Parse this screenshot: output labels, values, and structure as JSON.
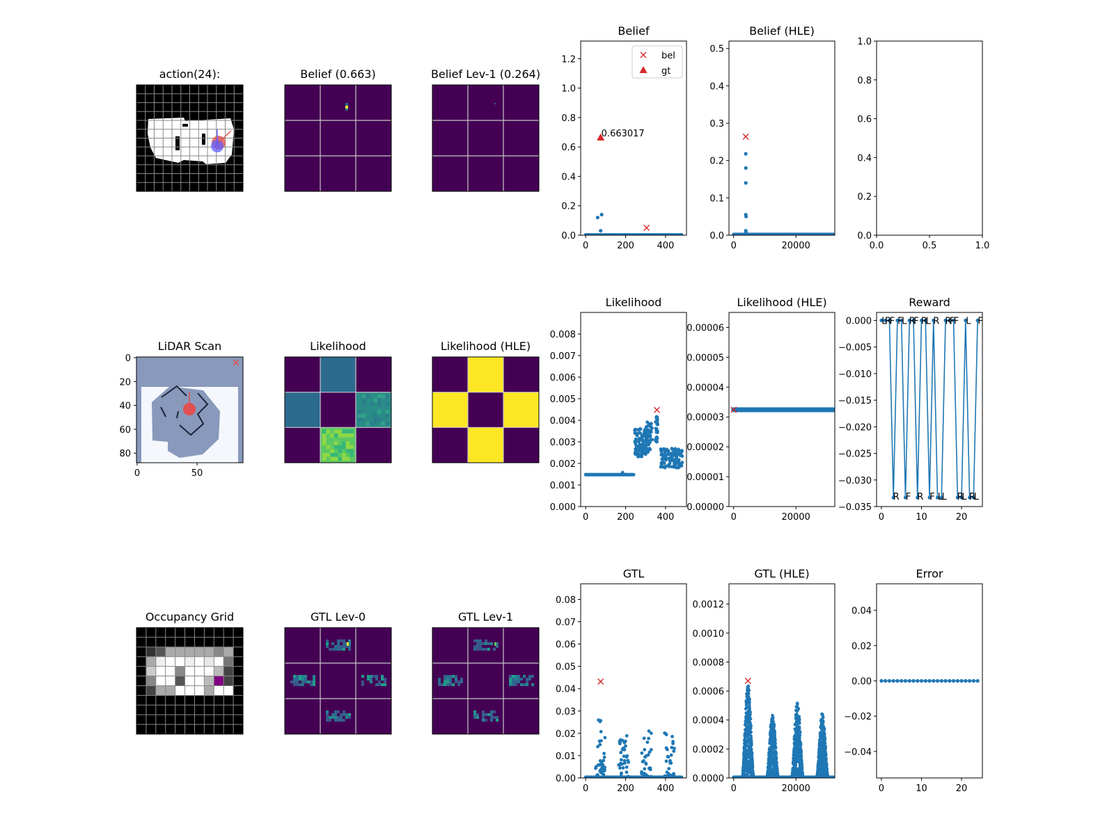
{
  "colors": {
    "scatter": "#1f77b4",
    "marker": "#d62728",
    "viridis_low": "#440154",
    "viridis_mid": "#2c6a8e",
    "viridis_teal": "#22a884",
    "viridis_high": "#fde725",
    "grid_line": "#c8c8c8",
    "lidar_bg": "#8899bb"
  },
  "image_panels": [
    {
      "id": "action",
      "title": "action(24):",
      "kind": "map"
    },
    {
      "id": "belief-map",
      "title": "Belief (0.663)",
      "kind": "belief"
    },
    {
      "id": "belief-lev1",
      "title": "Belief Lev-1 (0.264)",
      "kind": "belief-lev1"
    },
    {
      "id": "lidar",
      "title": "LiDAR Scan",
      "kind": "lidar",
      "xticks": [
        "0",
        "50"
      ],
      "yticks": [
        "0",
        "20",
        "40",
        "60",
        "80"
      ]
    },
    {
      "id": "likelihood-map",
      "title": "Likelihood",
      "kind": "likelihood"
    },
    {
      "id": "likelihood-hle-map",
      "title": "Likelihood (HLE)",
      "kind": "likelihood-hle"
    },
    {
      "id": "occupancy",
      "title": "Occupancy Grid",
      "kind": "occupancy"
    },
    {
      "id": "gtl-lev0",
      "title": "GTL Lev-0",
      "kind": "gtl0"
    },
    {
      "id": "gtl-lev1",
      "title": "GTL Lev-1",
      "kind": "gtl1"
    }
  ],
  "chart_data": [
    {
      "id": "belief",
      "type": "scatter",
      "title": "Belief",
      "xlim": [
        -25,
        505
      ],
      "ylim": [
        0,
        1.32
      ],
      "xticks": [
        0,
        200,
        400
      ],
      "yticks": [
        0.0,
        0.2,
        0.4,
        0.6,
        0.8,
        1.0,
        1.2
      ],
      "ytick_decimals": 1,
      "points": [
        [
          60,
          0.12
        ],
        [
          80,
          0.14
        ],
        [
          75,
          0.03
        ],
        [
          10,
          0.002
        ],
        [
          100,
          0.002
        ],
        [
          200,
          0.002
        ],
        [
          300,
          0.002
        ],
        [
          400,
          0.002
        ],
        [
          480,
          0.002
        ]
      ],
      "baseline": {
        "from": 0,
        "to": 480,
        "y": 0.002
      },
      "markers": [
        {
          "shape": "x",
          "x": 305,
          "y": 0.05
        },
        {
          "shape": "triangle",
          "x": 75,
          "y": 0.663
        }
      ],
      "annotations": [
        {
          "text": "0.663017",
          "x": 75,
          "y": 0.663
        }
      ],
      "legend": {
        "position": "top-right",
        "entries": [
          {
            "shape": "x",
            "label": "bel"
          },
          {
            "shape": "triangle",
            "label": "gt"
          }
        ]
      }
    },
    {
      "id": "belief-hle",
      "type": "scatter",
      "title": "Belief (HLE)",
      "xlim": [
        -1500,
        32500
      ],
      "ylim": [
        0,
        0.52
      ],
      "xticks": [
        0,
        20000
      ],
      "yticks": [
        0.0,
        0.1,
        0.2,
        0.3,
        0.4,
        0.5
      ],
      "ytick_decimals": 1,
      "points": [
        [
          3900,
          0.218
        ],
        [
          3900,
          0.18
        ],
        [
          3900,
          0.14
        ],
        [
          3900,
          0.055
        ],
        [
          4000,
          0.05
        ],
        [
          3900,
          0.012
        ],
        [
          3950,
          0.008
        ]
      ],
      "baseline": {
        "from": 0,
        "to": 32000,
        "y": 0.002
      },
      "markers": [
        {
          "shape": "x",
          "x": 3900,
          "y": 0.264
        }
      ],
      "annotations": [],
      "legend": null
    },
    {
      "id": "empty",
      "type": "scatter",
      "title": "",
      "xlim": [
        0,
        1
      ],
      "ylim": [
        0,
        1
      ],
      "xticks": [
        0.0,
        0.5,
        1.0
      ],
      "yticks": [
        0.0,
        0.2,
        0.4,
        0.6,
        0.8,
        1.0
      ],
      "ytick_decimals": 1,
      "xtick_decimals": 1,
      "points": [],
      "baseline": null,
      "markers": [],
      "annotations": [],
      "legend": null
    },
    {
      "id": "likelihood",
      "type": "scatter",
      "title": "Likelihood",
      "xlim": [
        -25,
        505
      ],
      "ylim": [
        0,
        0.009
      ],
      "xticks": [
        0,
        200,
        400
      ],
      "yticks": [
        0.0,
        0.001,
        0.002,
        0.003,
        0.004,
        0.005,
        0.006,
        0.007,
        0.008
      ],
      "ytick_decimals": 3,
      "generated": "likelihood",
      "baseline": {
        "from": 0,
        "to": 240,
        "y": 0.00148
      },
      "markers": [
        {
          "shape": "x",
          "x": 357,
          "y": 0.00448
        }
      ],
      "annotations": [],
      "legend": null
    },
    {
      "id": "likelihood-hle",
      "type": "scatter",
      "title": "Likelihood (HLE)",
      "xlim": [
        -1500,
        32500
      ],
      "ylim": [
        0,
        6.5e-05
      ],
      "xticks": [
        0,
        20000
      ],
      "yticks": [
        0.0,
        1e-05,
        2e-05,
        3e-05,
        4e-05,
        5e-05,
        6e-05
      ],
      "ytick_decimals": 5,
      "points": [],
      "baseline": {
        "from": 0,
        "to": 32000,
        "y": 3.24e-05,
        "thick": true
      },
      "markers": [
        {
          "shape": "x",
          "x": 0,
          "y": 3.24e-05
        }
      ],
      "annotations": [],
      "legend": null
    },
    {
      "id": "reward",
      "type": "line",
      "title": "Reward",
      "xlim": [
        -1.2,
        25.2
      ],
      "ylim": [
        -0.035,
        0.0015
      ],
      "xticks": [
        0,
        10,
        20
      ],
      "yticks": [
        0.0,
        -0.005,
        -0.01,
        -0.015,
        -0.02,
        -0.025,
        -0.03,
        -0.035
      ],
      "ytick_decimals": 3,
      "points": [
        [
          0,
          0
        ],
        [
          1,
          0
        ],
        [
          2,
          0
        ],
        [
          3,
          -0.0333
        ],
        [
          4,
          0
        ],
        [
          5,
          0
        ],
        [
          6,
          -0.0333
        ],
        [
          7,
          0
        ],
        [
          8,
          0
        ],
        [
          9,
          -0.0333
        ],
        [
          10,
          0
        ],
        [
          11,
          0
        ],
        [
          12,
          -0.0333
        ],
        [
          13,
          0
        ],
        [
          14,
          -0.0333
        ],
        [
          15,
          -0.0333
        ],
        [
          16,
          0
        ],
        [
          17,
          0
        ],
        [
          18,
          0
        ],
        [
          19,
          -0.0333
        ],
        [
          20,
          -0.0333
        ],
        [
          21,
          0
        ],
        [
          22,
          -0.0333
        ],
        [
          23,
          -0.0333
        ],
        [
          24,
          0
        ]
      ],
      "labels": [
        "L",
        "R",
        "F",
        "R",
        "F",
        "L",
        "F",
        "R",
        "F",
        "R",
        "R",
        "L",
        "F",
        "R",
        "L",
        "L",
        "R",
        "F",
        "F",
        "R",
        "L",
        "L",
        "R",
        "L",
        "F"
      ],
      "legend": null
    },
    {
      "id": "gtl",
      "type": "scatter",
      "title": "GTL",
      "xlim": [
        -25,
        505
      ],
      "ylim": [
        0,
        0.087
      ],
      "xticks": [
        0,
        200,
        400
      ],
      "yticks": [
        0.0,
        0.01,
        0.02,
        0.03,
        0.04,
        0.05,
        0.06,
        0.07,
        0.08
      ],
      "ytick_decimals": 2,
      "generated": "gtl",
      "baseline": {
        "from": 0,
        "to": 480,
        "y": 0.0003
      },
      "markers": [
        {
          "shape": "x",
          "x": 75,
          "y": 0.0432
        }
      ],
      "annotations": [],
      "legend": null
    },
    {
      "id": "gtl-hle",
      "type": "scatter",
      "title": "GTL (HLE)",
      "xlim": [
        -1500,
        32500
      ],
      "ylim": [
        0,
        0.00134
      ],
      "xticks": [
        0,
        20000
      ],
      "yticks": [
        0.0,
        0.0002,
        0.0004,
        0.0006,
        0.0008,
        0.001,
        0.0012
      ],
      "ytick_decimals": 4,
      "generated": "gtl-hle",
      "baseline": {
        "from": 0,
        "to": 32000,
        "y": 5e-06
      },
      "markers": [
        {
          "shape": "x",
          "x": 4600,
          "y": 0.00067
        }
      ],
      "annotations": [],
      "legend": null
    },
    {
      "id": "error",
      "type": "line",
      "title": "Error",
      "xlim": [
        -1.2,
        25.2
      ],
      "ylim": [
        -0.055,
        0.055
      ],
      "xticks": [
        0,
        10,
        20
      ],
      "yticks": [
        -0.04,
        -0.02,
        0.0,
        0.02,
        0.04
      ],
      "ytick_decimals": 2,
      "points": [
        [
          0,
          0
        ],
        [
          1,
          0
        ],
        [
          2,
          0
        ],
        [
          3,
          0
        ],
        [
          4,
          0
        ],
        [
          5,
          0
        ],
        [
          6,
          0
        ],
        [
          7,
          0
        ],
        [
          8,
          0
        ],
        [
          9,
          0
        ],
        [
          10,
          0
        ],
        [
          11,
          0
        ],
        [
          12,
          0
        ],
        [
          13,
          0
        ],
        [
          14,
          0
        ],
        [
          15,
          0
        ],
        [
          16,
          0
        ],
        [
          17,
          0
        ],
        [
          18,
          0
        ],
        [
          19,
          0
        ],
        [
          20,
          0
        ],
        [
          21,
          0
        ],
        [
          22,
          0
        ],
        [
          23,
          0
        ],
        [
          24,
          0
        ]
      ],
      "legend": null
    }
  ]
}
